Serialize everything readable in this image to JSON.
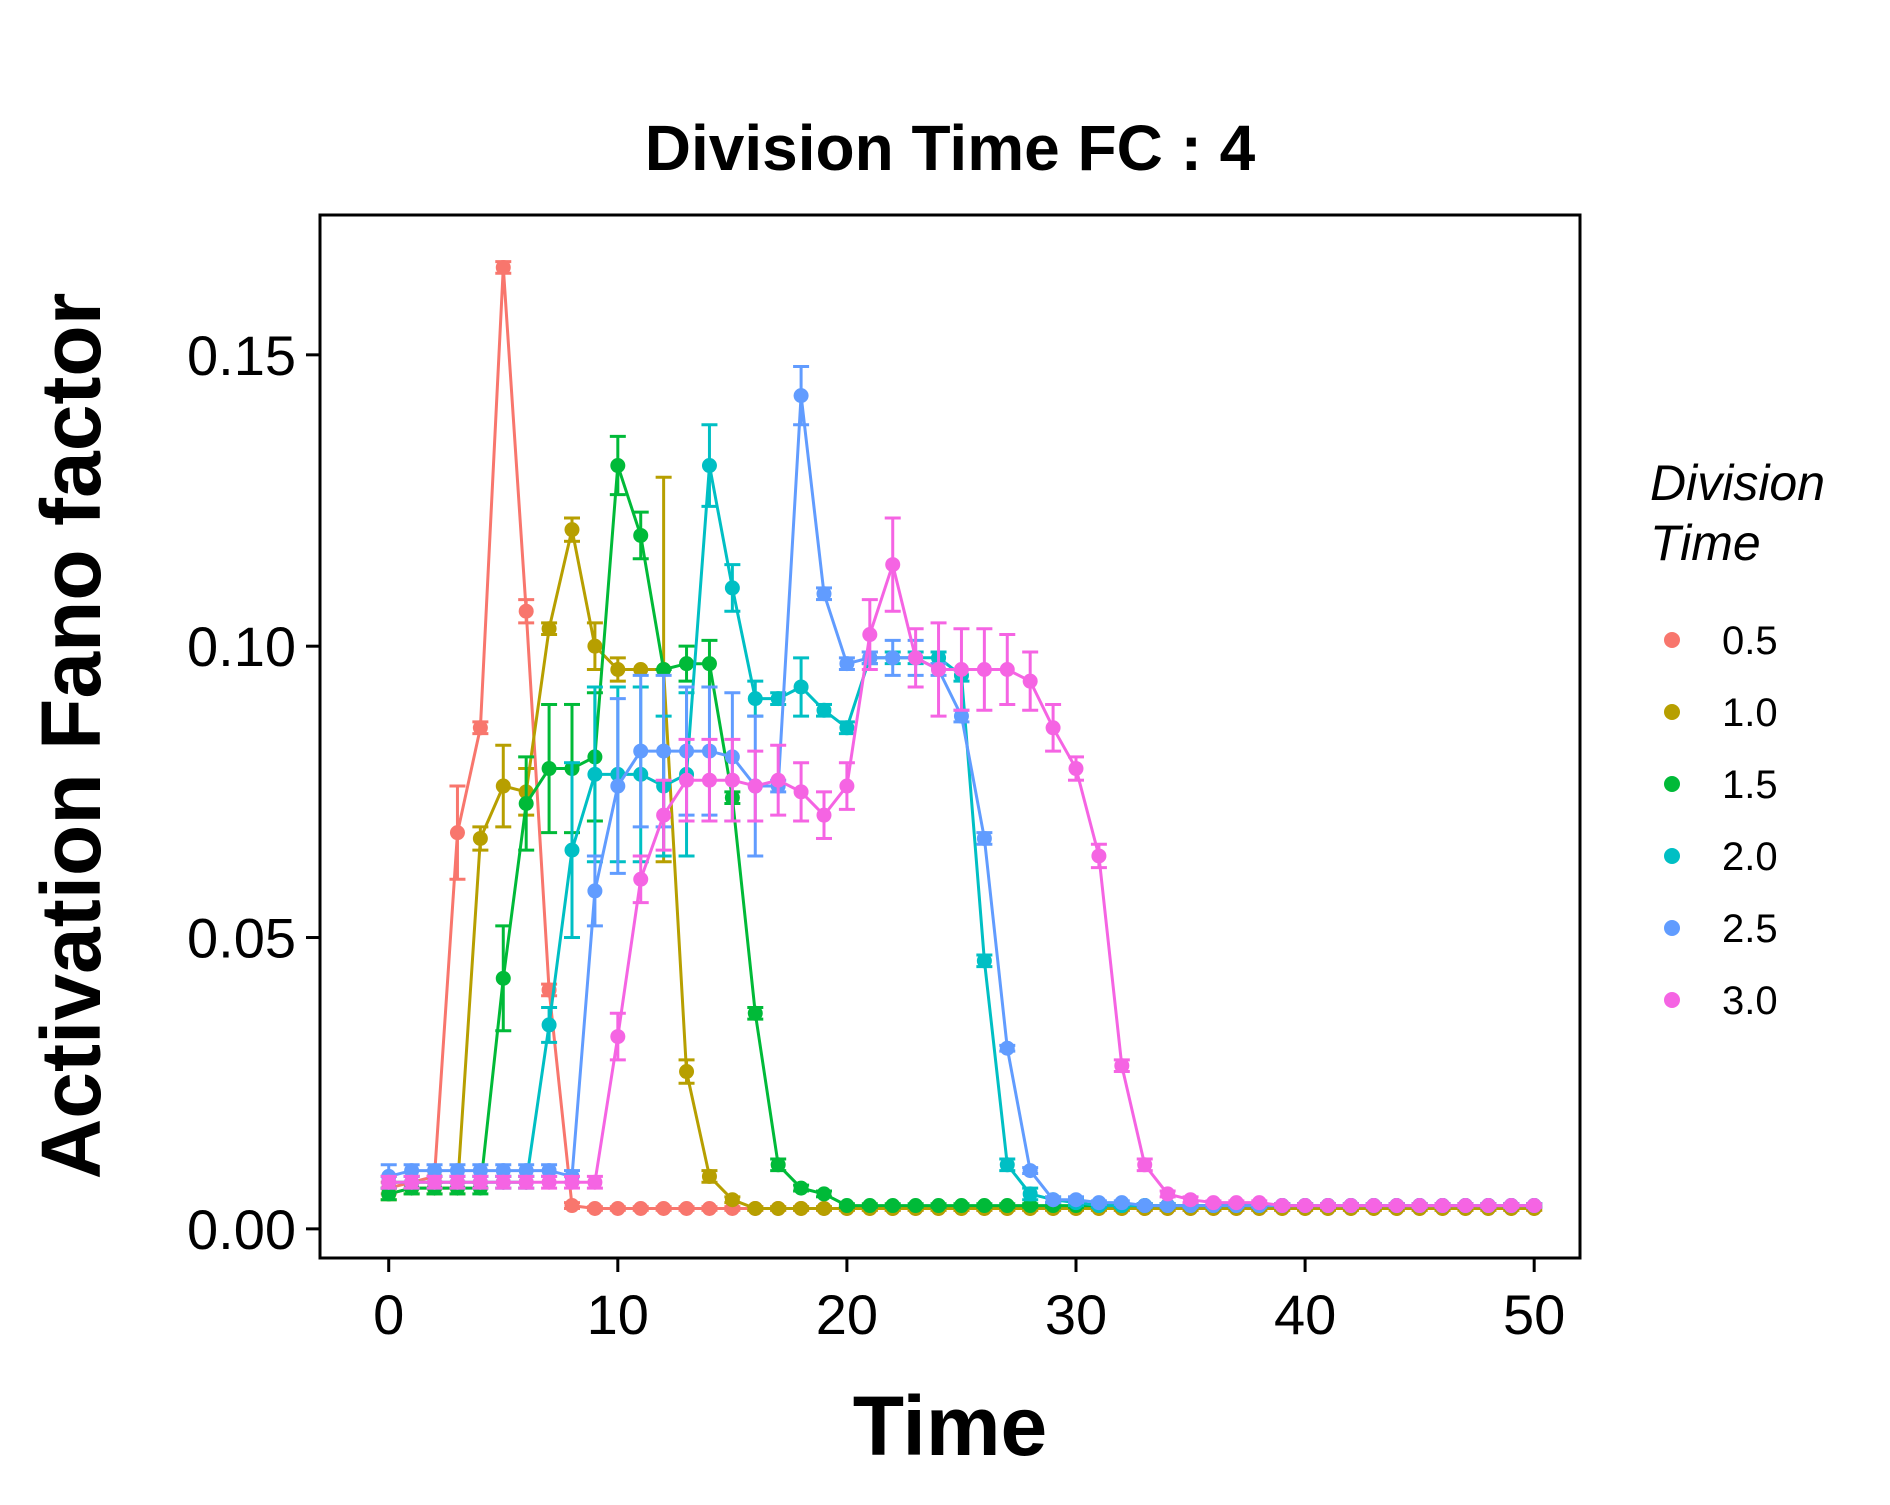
{
  "chart_data": {
    "type": "line",
    "title": "Division Time FC : 4",
    "xlabel": "Time",
    "ylabel": "Activation Fano factor",
    "xlim": [
      -3,
      52
    ],
    "ylim": [
      -0.005,
      0.174
    ],
    "xticks": [
      0,
      10,
      20,
      30,
      40,
      50
    ],
    "xtick_labels": [
      "0",
      "10",
      "20",
      "30",
      "40",
      "50"
    ],
    "yticks": [
      0.0,
      0.05,
      0.1,
      0.15
    ],
    "ytick_labels": [
      "0.00",
      "0.05",
      "0.10",
      "0.15"
    ],
    "grid": false,
    "legend": {
      "title_lines": [
        "Division",
        "Time"
      ],
      "position": "right"
    },
    "x": [
      0,
      1,
      2,
      3,
      4,
      5,
      6,
      7,
      8,
      9,
      10,
      11,
      12,
      13,
      14,
      15,
      16,
      17,
      18,
      19,
      20,
      21,
      22,
      23,
      24,
      25,
      26,
      27,
      28,
      29,
      30,
      31,
      32,
      33,
      34,
      35,
      36,
      37,
      38,
      39,
      40,
      41,
      42,
      43,
      44,
      45,
      46,
      47,
      48,
      49,
      50
    ],
    "series": [
      {
        "name": "0.5",
        "color": "#F8766D",
        "values": [
          0.007,
          0.008,
          0.009,
          0.068,
          0.086,
          0.165,
          0.106,
          0.041,
          0.004,
          0.0035,
          0.0035,
          0.0035,
          0.0035,
          0.0035,
          0.0035,
          0.0035,
          0.0035,
          0.0035,
          0.0035,
          0.0035,
          0.0035,
          0.0035,
          0.0035,
          0.0035,
          0.0035,
          0.0035,
          0.0035,
          0.0035,
          0.0035,
          0.0035,
          0.0035,
          0.0035,
          0.0035,
          0.0035,
          0.0035,
          0.0035,
          0.0035,
          0.0035,
          0.0035,
          0.0035,
          0.0035,
          0.0035,
          0.0035,
          0.0035,
          0.0035,
          0.0035,
          0.0035,
          0.0035,
          0.0035,
          0.0035,
          0.0035
        ],
        "errors": [
          0.001,
          0.001,
          0.001,
          0.008,
          0.001,
          0.001,
          0.002,
          0.001,
          0.0005,
          0.0003,
          0.0003,
          0.0003,
          0.0003,
          0.0003,
          0.0003,
          0.0003,
          0.0003,
          0.0003,
          0.0003,
          0.0003,
          0.0003,
          0.0003,
          0.0003,
          0.0003,
          0.0003,
          0.0003,
          0.0003,
          0.0003,
          0.0003,
          0.0003,
          0.0003,
          0.0003,
          0.0003,
          0.0003,
          0.0003,
          0.0003,
          0.0003,
          0.0003,
          0.0003,
          0.0003,
          0.0003,
          0.0003,
          0.0003,
          0.0003,
          0.0003,
          0.0003,
          0.0003,
          0.0003,
          0.0003,
          0.0003,
          0.0003
        ]
      },
      {
        "name": "1.0",
        "color": "#B79F00",
        "values": [
          0.006,
          0.007,
          0.007,
          0.007,
          0.067,
          0.076,
          0.075,
          0.103,
          0.12,
          0.1,
          0.096,
          0.096,
          0.096,
          0.027,
          0.009,
          0.005,
          0.0035,
          0.0035,
          0.0035,
          0.0035,
          0.0035,
          0.0035,
          0.0035,
          0.0035,
          0.0035,
          0.0035,
          0.0035,
          0.0035,
          0.0035,
          0.0035,
          0.0035,
          0.0035,
          0.0035,
          0.0035,
          0.0035,
          0.0035,
          0.0035,
          0.0035,
          0.0035,
          0.0035,
          0.0035,
          0.0035,
          0.0035,
          0.0035,
          0.0035,
          0.0035,
          0.0035,
          0.0035,
          0.0035,
          0.0035,
          0.0035
        ],
        "errors": [
          0.001,
          0.001,
          0.001,
          0.001,
          0.002,
          0.007,
          0.004,
          0.001,
          0.002,
          0.004,
          0.002,
          0.0,
          0.033,
          0.002,
          0.001,
          0.0005,
          0.0003,
          0.0003,
          0.0003,
          0.0003,
          0.0003,
          0.0003,
          0.0003,
          0.0003,
          0.0003,
          0.0003,
          0.0003,
          0.0003,
          0.0003,
          0.0003,
          0.0003,
          0.0003,
          0.0003,
          0.0003,
          0.0003,
          0.0003,
          0.0003,
          0.0003,
          0.0003,
          0.0003,
          0.0003,
          0.0003,
          0.0003,
          0.0003,
          0.0003,
          0.0003,
          0.0003,
          0.0003,
          0.0003,
          0.0003,
          0.0003
        ]
      },
      {
        "name": "1.5",
        "color": "#00BA38",
        "values": [
          0.006,
          0.007,
          0.007,
          0.007,
          0.007,
          0.043,
          0.073,
          0.079,
          0.079,
          0.081,
          0.131,
          0.119,
          0.096,
          0.097,
          0.097,
          0.074,
          0.037,
          0.011,
          0.007,
          0.006,
          0.004,
          0.004,
          0.004,
          0.004,
          0.004,
          0.004,
          0.004,
          0.004,
          0.004,
          0.004,
          0.004,
          0.004,
          0.004,
          0.004,
          0.004,
          0.004,
          0.004,
          0.004,
          0.004,
          0.004,
          0.004,
          0.004,
          0.004,
          0.004,
          0.004,
          0.004,
          0.004,
          0.004,
          0.004,
          0.004,
          0.004
        ],
        "errors": [
          0.001,
          0.001,
          0.001,
          0.001,
          0.001,
          0.009,
          0.008,
          0.011,
          0.011,
          0.011,
          0.005,
          0.004,
          0.0,
          0.003,
          0.004,
          0.001,
          0.001,
          0.001,
          0.0005,
          0.0005,
          0.0003,
          0.0003,
          0.0003,
          0.0003,
          0.0003,
          0.0003,
          0.0003,
          0.0003,
          0.0003,
          0.0003,
          0.0003,
          0.0003,
          0.0003,
          0.0003,
          0.0003,
          0.0003,
          0.0003,
          0.0003,
          0.0003,
          0.0003,
          0.0003,
          0.0003,
          0.0003,
          0.0003,
          0.0003,
          0.0003,
          0.0003,
          0.0003,
          0.0003,
          0.0003,
          0.0003
        ]
      },
      {
        "name": "2.0",
        "color": "#00BFC4",
        "values": [
          0.008,
          0.008,
          0.008,
          0.008,
          0.008,
          0.008,
          0.008,
          0.035,
          0.065,
          0.078,
          0.078,
          0.078,
          0.076,
          0.078,
          0.131,
          0.11,
          0.091,
          0.091,
          0.093,
          0.089,
          0.086,
          0.098,
          0.098,
          0.098,
          0.098,
          0.095,
          0.046,
          0.011,
          0.006,
          0.005,
          0.0045,
          0.004,
          0.004,
          0.004,
          0.004,
          0.004,
          0.004,
          0.004,
          0.004,
          0.004,
          0.004,
          0.004,
          0.004,
          0.004,
          0.004,
          0.004,
          0.004,
          0.004,
          0.004,
          0.004,
          0.004
        ],
        "errors": [
          0.001,
          0.001,
          0.001,
          0.001,
          0.001,
          0.001,
          0.001,
          0.003,
          0.015,
          0.015,
          0.015,
          0.015,
          0.012,
          0.014,
          0.007,
          0.004,
          0.003,
          0.001,
          0.005,
          0.001,
          0.001,
          0.001,
          0.001,
          0.001,
          0.001,
          0.001,
          0.001,
          0.001,
          0.001,
          0.0005,
          0.0005,
          0.0003,
          0.0003,
          0.0003,
          0.0003,
          0.0003,
          0.0003,
          0.0003,
          0.0003,
          0.0003,
          0.0003,
          0.0003,
          0.0003,
          0.0003,
          0.0003,
          0.0003,
          0.0003,
          0.0003,
          0.0003,
          0.0003,
          0.0003
        ]
      },
      {
        "name": "2.5",
        "color": "#619CFF",
        "values": [
          0.009,
          0.01,
          0.01,
          0.01,
          0.01,
          0.01,
          0.01,
          0.01,
          0.009,
          0.058,
          0.076,
          0.082,
          0.082,
          0.082,
          0.082,
          0.081,
          0.076,
          0.076,
          0.143,
          0.109,
          0.097,
          0.098,
          0.098,
          0.098,
          0.096,
          0.088,
          0.067,
          0.031,
          0.01,
          0.005,
          0.005,
          0.0045,
          0.0045,
          0.004,
          0.004,
          0.004,
          0.004,
          0.004,
          0.004,
          0.004,
          0.004,
          0.004,
          0.004,
          0.004,
          0.004,
          0.004,
          0.004,
          0.004,
          0.004,
          0.004,
          0.004
        ],
        "errors": [
          0.002,
          0.001,
          0.001,
          0.001,
          0.001,
          0.001,
          0.001,
          0.001,
          0.001,
          0.006,
          0.015,
          0.013,
          0.013,
          0.011,
          0.011,
          0.011,
          0.012,
          0.001,
          0.005,
          0.001,
          0.001,
          0.001,
          0.003,
          0.003,
          0.001,
          0.001,
          0.001,
          0.0005,
          0.0005,
          0.0005,
          0.0005,
          0.0003,
          0.0003,
          0.0003,
          0.0003,
          0.0003,
          0.0003,
          0.0003,
          0.0003,
          0.0003,
          0.0003,
          0.0003,
          0.0003,
          0.0003,
          0.0003,
          0.0003,
          0.0003,
          0.0003,
          0.0003,
          0.0003,
          0.0003
        ]
      },
      {
        "name": "3.0",
        "color": "#F564E3",
        "values": [
          0.008,
          0.008,
          0.008,
          0.008,
          0.008,
          0.008,
          0.008,
          0.008,
          0.008,
          0.008,
          0.033,
          0.06,
          0.071,
          0.077,
          0.077,
          0.077,
          0.076,
          0.077,
          0.075,
          0.071,
          0.076,
          0.102,
          0.114,
          0.098,
          0.096,
          0.096,
          0.096,
          0.096,
          0.094,
          0.086,
          0.079,
          0.064,
          0.028,
          0.011,
          0.006,
          0.005,
          0.0045,
          0.0045,
          0.0045,
          0.004,
          0.004,
          0.004,
          0.004,
          0.004,
          0.004,
          0.004,
          0.004,
          0.004,
          0.004,
          0.004,
          0.004
        ],
        "errors": [
          0.001,
          0.001,
          0.001,
          0.001,
          0.001,
          0.001,
          0.001,
          0.001,
          0.001,
          0.001,
          0.004,
          0.004,
          0.006,
          0.007,
          0.007,
          0.007,
          0.006,
          0.006,
          0.005,
          0.004,
          0.004,
          0.006,
          0.008,
          0.005,
          0.008,
          0.007,
          0.007,
          0.006,
          0.005,
          0.004,
          0.002,
          0.002,
          0.001,
          0.001,
          0.0005,
          0.0005,
          0.0003,
          0.0003,
          0.0003,
          0.0003,
          0.0003,
          0.0003,
          0.0003,
          0.0003,
          0.0003,
          0.0003,
          0.0003,
          0.0003,
          0.0003,
          0.0003,
          0.0003
        ]
      }
    ]
  }
}
